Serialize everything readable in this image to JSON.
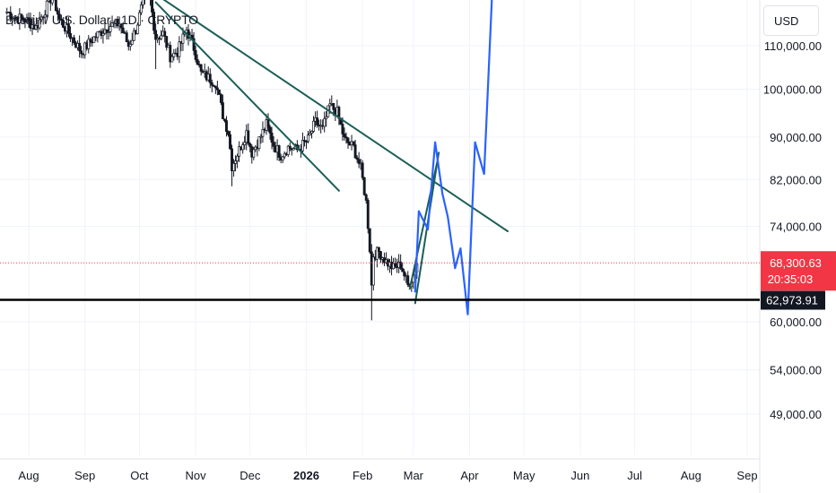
{
  "chart_data": {
    "type": "candlestick",
    "title": "Bitcoin / U.S. Dollar · 1D · CRYPTO",
    "currency": "USD",
    "y_scale": "log",
    "y_ticks": [
      "110,000.00",
      "100,000.00",
      "90,000.00",
      "82,000.00",
      "74,000.00",
      "60,000.00",
      "54,000.00",
      "49,000.00"
    ],
    "y_tick_values": [
      110000,
      100000,
      90000,
      82000,
      74000,
      60000,
      54000,
      49000
    ],
    "x_ticks": [
      "Aug",
      "Sep",
      "Oct",
      "Nov",
      "Dec",
      "2026",
      "Feb",
      "Mar",
      "Apr",
      "May",
      "Jun",
      "Jul",
      "Aug",
      "Sep"
    ],
    "x_tick_dates": [
      "2025-08-01",
      "2025-09-01",
      "2025-10-01",
      "2025-11-01",
      "2025-12-01",
      "2026-01-01",
      "2026-02-01",
      "2026-03-01",
      "2026-04-01",
      "2026-05-01",
      "2026-06-01",
      "2026-07-01",
      "2026-08-01",
      "2026-09-01"
    ],
    "last_price": {
      "value": 68300.63,
      "label": "68,300.63",
      "countdown": "20:35:03",
      "color": "#f23645"
    },
    "support_line": {
      "value": 62973.91,
      "label": "62,973.91"
    },
    "price_path": [
      [
        "2025-07-20",
        118500
      ],
      [
        "2025-07-25",
        117000
      ],
      [
        "2025-07-30",
        116500
      ],
      [
        "2025-08-05",
        114500
      ],
      [
        "2025-08-10",
        119000
      ],
      [
        "2025-08-14",
        123000
      ],
      [
        "2025-08-18",
        116500
      ],
      [
        "2025-08-24",
        112500
      ],
      [
        "2025-08-30",
        108500
      ],
      [
        "2025-09-05",
        111500
      ],
      [
        "2025-09-10",
        113500
      ],
      [
        "2025-09-15",
        115000
      ],
      [
        "2025-09-20",
        115500
      ],
      [
        "2025-09-25",
        110000
      ],
      [
        "2025-09-29",
        114000
      ],
      [
        "2025-10-03",
        121000
      ],
      [
        "2025-10-06",
        124500
      ],
      [
        "2025-10-10",
        112000
      ],
      [
        "2025-10-14",
        113000
      ],
      [
        "2025-10-18",
        107500
      ],
      [
        "2025-10-22",
        108500
      ],
      [
        "2025-10-27",
        114000
      ],
      [
        "2025-10-31",
        109500
      ],
      [
        "2025-11-04",
        103500
      ],
      [
        "2025-11-08",
        102500
      ],
      [
        "2025-11-12",
        101500
      ],
      [
        "2025-11-16",
        94500
      ],
      [
        "2025-11-19",
        91000
      ],
      [
        "2025-11-21",
        84500
      ],
      [
        "2025-11-25",
        87500
      ],
      [
        "2025-11-29",
        91000
      ],
      [
        "2025-12-02",
        87000
      ],
      [
        "2025-12-06",
        89500
      ],
      [
        "2025-12-10",
        92500
      ],
      [
        "2025-12-14",
        88500
      ],
      [
        "2025-12-18",
        86500
      ],
      [
        "2025-12-22",
        88000
      ],
      [
        "2025-12-27",
        87500
      ],
      [
        "2026-01-02",
        89500
      ],
      [
        "2026-01-06",
        93000
      ],
      [
        "2026-01-10",
        91500
      ],
      [
        "2026-01-14",
        96500
      ],
      [
        "2026-01-18",
        95000
      ],
      [
        "2026-01-22",
        89500
      ],
      [
        "2026-01-27",
        88000
      ],
      [
        "2026-01-31",
        84000
      ],
      [
        "2026-02-03",
        78000
      ],
      [
        "2026-02-05",
        70500
      ],
      [
        "2026-02-06",
        65000
      ],
      [
        "2026-02-07",
        69500
      ],
      [
        "2026-02-10",
        70000
      ],
      [
        "2026-02-14",
        68500
      ],
      [
        "2026-02-18",
        67500
      ],
      [
        "2026-02-22",
        68000
      ],
      [
        "2026-02-26",
        65000
      ],
      [
        "2026-03-01",
        66500
      ],
      [
        "2026-03-03",
        68300
      ]
    ],
    "trendlines": [
      {
        "from": [
          "2025-10-06",
          124500
        ],
        "to": [
          "2026-04-22",
          73200
        ],
        "color": "#1b5e57"
      },
      {
        "from": [
          "2025-10-10",
          121000
        ],
        "to": [
          "2026-01-19",
          80000
        ],
        "color": "#1b5e57"
      },
      {
        "from": [
          "2026-03-02",
          62500
        ],
        "to": [
          "2026-03-15",
          87000
        ],
        "color": "#1b5e57"
      },
      {
        "from": [
          "2026-02-27",
          64500
        ],
        "to": [
          "2026-03-14",
          85000
        ],
        "color": "#1b5e57"
      }
    ],
    "projection": {
      "color": "#2962ff",
      "points": [
        [
          "2026-03-02",
          64000
        ],
        [
          "2026-03-04",
          76500
        ],
        [
          "2026-03-09",
          73500
        ],
        [
          "2026-03-13",
          89000
        ],
        [
          "2026-03-17",
          79500
        ],
        [
          "2026-03-20",
          75500
        ],
        [
          "2026-03-24",
          67500
        ],
        [
          "2026-03-27",
          70500
        ],
        [
          "2026-03-31",
          61000
        ],
        [
          "2026-04-04",
          89000
        ],
        [
          "2026-04-09",
          83000
        ],
        [
          "2026-04-14",
          130000
        ]
      ]
    },
    "colors": {
      "up": "#26a69a",
      "down": "#ef5350",
      "candle_ink": "#131722",
      "axis_text": "#131722"
    }
  }
}
